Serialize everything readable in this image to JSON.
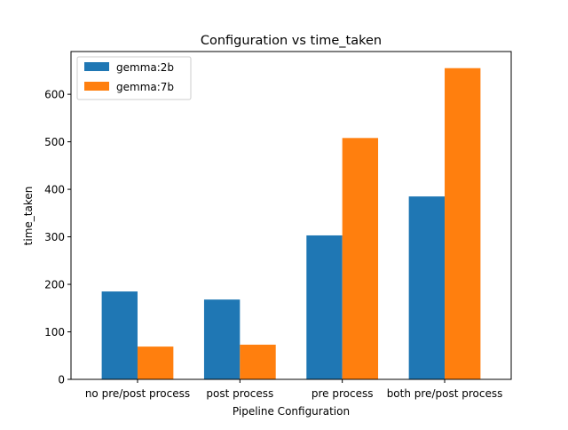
{
  "chart_data": {
    "type": "bar",
    "title": "Configuration vs time_taken",
    "xlabel": "Pipeline Configuration",
    "ylabel": "time_taken",
    "categories": [
      "no pre/post process",
      "post process",
      "pre process",
      "both pre/post process"
    ],
    "series": [
      {
        "name": "gemma:2b",
        "values": [
          185,
          168,
          303,
          385
        ],
        "color": "#1f77b4"
      },
      {
        "name": "gemma:7b",
        "values": [
          69,
          73,
          508,
          655
        ],
        "color": "#ff7f0e"
      }
    ],
    "ylim": [
      0,
      690
    ],
    "yticks": [
      0,
      100,
      200,
      300,
      400,
      500,
      600
    ],
    "grid": false,
    "legend_position": "top-left"
  }
}
